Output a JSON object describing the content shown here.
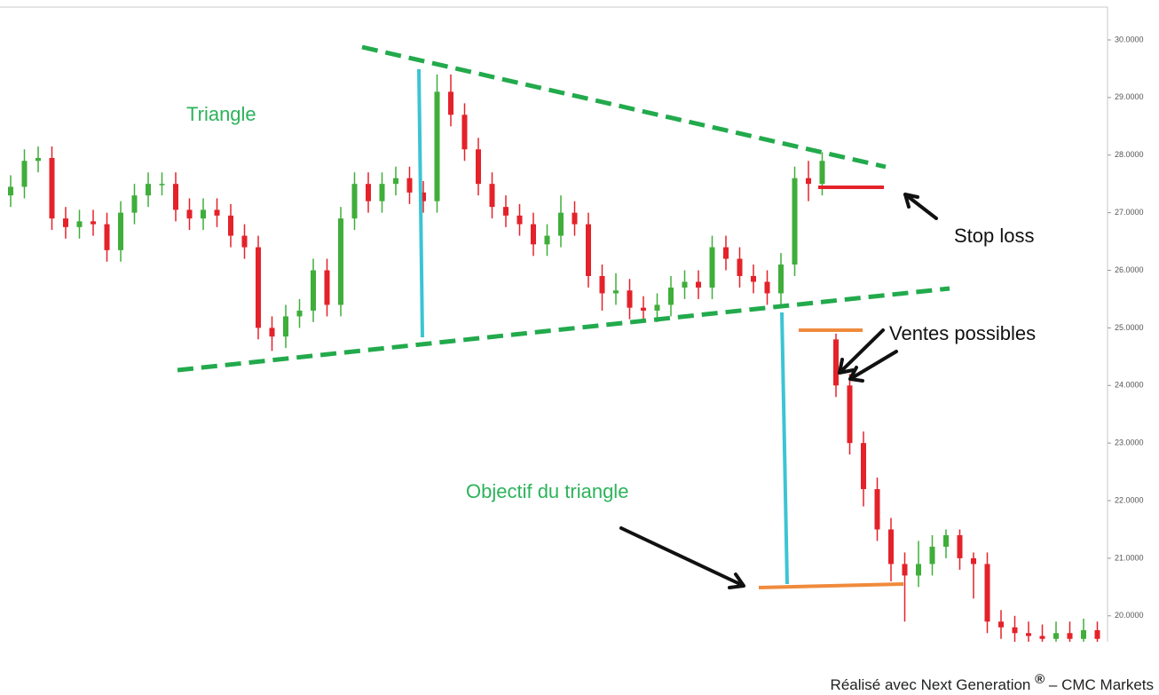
{
  "chart_data": {
    "type": "candlestick",
    "annotations": {
      "triangle": "Triangle",
      "stop_loss": "Stop loss",
      "sales": "Ventes possibles",
      "target": "Objectif du triangle"
    },
    "credit": {
      "text": "Réalisé avec Next Generation",
      "mark": "®",
      "source": "– CMC Markets"
    },
    "up_color": "#3fae3a",
    "down_color": "#e4222a",
    "ylim": [
      19.55,
      30.57
    ],
    "yticks": [
      {
        "value": 20,
        "label": "20.0000"
      },
      {
        "value": 21,
        "label": "21.0000"
      },
      {
        "value": 22,
        "label": "22.0000"
      },
      {
        "value": 23,
        "label": "23.0000"
      },
      {
        "value": 24,
        "label": "24.0000"
      },
      {
        "value": 25,
        "label": "25.0000"
      },
      {
        "value": 26,
        "label": "26.0000"
      },
      {
        "value": 27,
        "label": "27.0000"
      },
      {
        "value": 28,
        "label": "28.0000"
      },
      {
        "value": 29,
        "label": "29.0000"
      },
      {
        "value": 30,
        "label": "30.0000"
      }
    ],
    "open": [
      27.3,
      27.45,
      27.9,
      27.95,
      26.9,
      26.75,
      26.85,
      26.8,
      26.35,
      27.0,
      27.3,
      27.5,
      27.5,
      27.05,
      26.9,
      27.05,
      26.95,
      26.6,
      26.4,
      25.0,
      24.85,
      25.2,
      25.3,
      26.0,
      25.4,
      26.9,
      27.5,
      27.2,
      27.5,
      27.6,
      27.35,
      27.2,
      29.1,
      28.7,
      28.1,
      27.5,
      27.1,
      26.95,
      26.8,
      26.45,
      26.6,
      27.0,
      26.8,
      25.9,
      25.6,
      25.65,
      25.35,
      25.3,
      25.4,
      25.7,
      25.8,
      25.7,
      26.4,
      26.2,
      25.9,
      25.8,
      25.6,
      26.1,
      27.6,
      27.5,
      24.8,
      24.0,
      23.0,
      22.2,
      21.5,
      20.9,
      20.7,
      20.9,
      21.2,
      21.4,
      21.0,
      20.9,
      19.9,
      19.8,
      19.7,
      19.65,
      19.6,
      19.7,
      19.6,
      19.75
    ],
    "high": [
      27.65,
      28.1,
      28.15,
      28.15,
      27.1,
      27.05,
      27.05,
      27.0,
      27.2,
      27.5,
      27.7,
      27.7,
      27.7,
      27.25,
      27.25,
      27.25,
      27.15,
      26.8,
      26.6,
      25.2,
      25.4,
      25.5,
      26.2,
      26.2,
      27.1,
      27.7,
      27.7,
      27.7,
      27.8,
      27.8,
      27.55,
      29.4,
      29.4,
      28.9,
      28.3,
      27.7,
      27.3,
      27.15,
      27.0,
      26.8,
      27.3,
      27.2,
      27.0,
      26.1,
      25.95,
      25.85,
      25.55,
      25.6,
      25.9,
      26.0,
      26.0,
      26.6,
      26.6,
      26.4,
      26.1,
      26.0,
      26.3,
      27.8,
      27.9,
      28.05,
      24.9,
      24.2,
      23.2,
      22.4,
      21.7,
      21.1,
      21.3,
      21.4,
      21.5,
      21.5,
      21.1,
      21.1,
      20.1,
      20.0,
      19.9,
      19.85,
      19.9,
      19.9,
      19.95,
      19.9
    ],
    "low": [
      27.1,
      27.25,
      27.7,
      26.7,
      26.55,
      26.55,
      26.6,
      26.15,
      26.15,
      26.8,
      27.1,
      27.3,
      26.85,
      26.7,
      26.7,
      26.75,
      26.4,
      26.2,
      24.8,
      24.6,
      24.65,
      25.0,
      25.1,
      25.2,
      25.2,
      26.7,
      27.0,
      27.0,
      27.3,
      27.15,
      27.0,
      27.0,
      28.5,
      27.9,
      27.3,
      26.9,
      26.75,
      26.6,
      26.25,
      26.25,
      26.4,
      26.6,
      25.7,
      25.3,
      25.4,
      25.15,
      25.1,
      25.1,
      25.2,
      25.5,
      25.5,
      25.5,
      26.0,
      25.7,
      25.6,
      25.4,
      25.4,
      25.9,
      27.2,
      27.3,
      23.8,
      22.8,
      21.9,
      21.3,
      20.6,
      19.9,
      20.5,
      20.7,
      21.0,
      20.8,
      20.3,
      19.7,
      19.6,
      19.55,
      19.55,
      19.55,
      19.55,
      19.55,
      19.55,
      19.55
    ],
    "close": [
      27.45,
      27.9,
      27.95,
      26.9,
      26.75,
      26.85,
      26.8,
      26.35,
      27.0,
      27.3,
      27.5,
      27.5,
      27.05,
      26.9,
      27.05,
      26.95,
      26.6,
      26.4,
      25.0,
      24.85,
      25.2,
      25.3,
      26.0,
      25.4,
      26.9,
      27.5,
      27.2,
      27.5,
      27.6,
      27.35,
      27.2,
      29.1,
      28.7,
      28.1,
      27.5,
      27.1,
      26.95,
      26.8,
      26.45,
      26.6,
      27.0,
      26.8,
      25.9,
      25.6,
      25.65,
      25.35,
      25.3,
      25.4,
      25.7,
      25.8,
      25.7,
      26.4,
      26.2,
      25.9,
      25.8,
      25.6,
      26.1,
      27.6,
      27.5,
      27.9,
      24.0,
      23.0,
      22.2,
      21.5,
      20.9,
      20.7,
      20.9,
      21.2,
      21.4,
      21.0,
      20.9,
      19.9,
      19.8,
      19.7,
      19.65,
      19.6,
      19.7,
      19.6,
      19.75,
      19.6
    ]
  }
}
